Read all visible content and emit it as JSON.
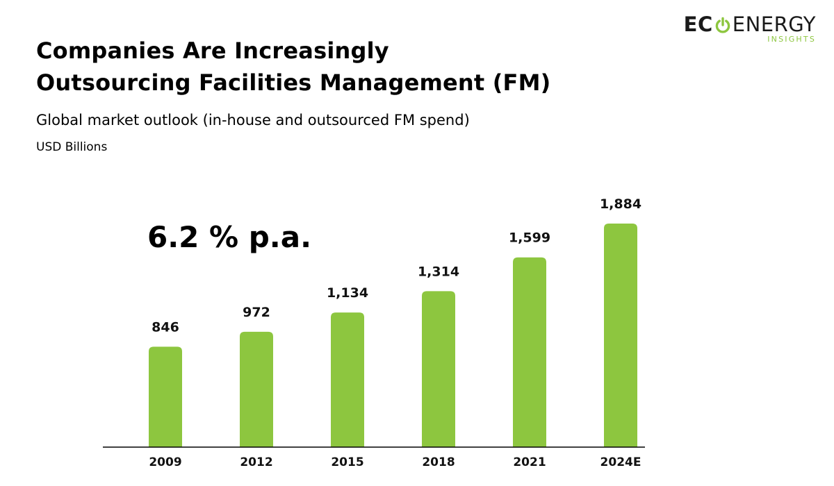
{
  "header": {
    "title_line1": "Companies Are Increasingly",
    "title_line2": "Outsourcing Facilities Management (FM)",
    "subtitle": "Global market outlook (in-house and outsourced FM spend)",
    "unit": "USD Billions"
  },
  "logo": {
    "text_bold": "EC",
    "icon": "power-icon",
    "text_regular": "ENERGY",
    "tagline": "INSIGHTS",
    "accent_color": "#8dc63f"
  },
  "annotation": {
    "cagr": "6.2 % p.a."
  },
  "chart_data": {
    "type": "bar",
    "categories": [
      "2009",
      "2012",
      "2015",
      "2018",
      "2021",
      "2024E"
    ],
    "values": [
      846,
      972,
      1134,
      1314,
      1599,
      1884
    ],
    "value_labels": [
      "846",
      "972",
      "1,134",
      "1,314",
      "1,599",
      "1,884"
    ],
    "title": "",
    "xlabel": "",
    "ylabel": "",
    "ylim": [
      0,
      1884
    ],
    "grid": false,
    "legend": "none",
    "bar_color": "#8dc63f",
    "axis_color": "#000000"
  }
}
